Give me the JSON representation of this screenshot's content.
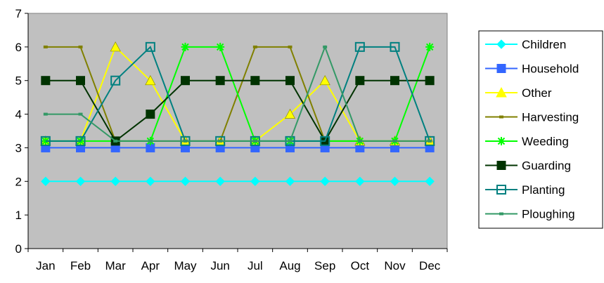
{
  "chart_data": {
    "type": "line",
    "title": "",
    "xlabel": "",
    "ylabel": "",
    "categories": [
      "Jan",
      "Feb",
      "Mar",
      "Apr",
      "May",
      "Jun",
      "Jul",
      "Aug",
      "Sep",
      "Oct",
      "Nov",
      "Dec"
    ],
    "ylim": [
      0,
      7
    ],
    "yticks": [
      0,
      1,
      2,
      3,
      4,
      5,
      6,
      7
    ],
    "grid": false,
    "plot_background": "#c0c0c0",
    "legend_position": "right",
    "series": [
      {
        "name": "Children",
        "color": "#00ffff",
        "marker": "diamond",
        "values": [
          2,
          2,
          2,
          2,
          2,
          2,
          2,
          2,
          2,
          2,
          2,
          2
        ]
      },
      {
        "name": "Household",
        "color": "#3366ff",
        "marker": "square",
        "values": [
          3,
          3,
          3,
          3,
          3,
          3,
          3,
          3,
          3,
          3,
          3,
          3
        ]
      },
      {
        "name": "Other",
        "color": "#ffff00",
        "marker": "triangle",
        "values": [
          3.2,
          3.2,
          6,
          5,
          3.2,
          3.2,
          3.2,
          4,
          5,
          3.2,
          3.2,
          3.2
        ]
      },
      {
        "name": "Harvesting",
        "color": "#808000",
        "marker": "dash",
        "values": [
          6,
          6,
          3.2,
          3.2,
          3.2,
          3.2,
          6,
          6,
          3.2,
          3.2,
          3.2,
          3.2
        ]
      },
      {
        "name": "Weeding",
        "color": "#00ff00",
        "marker": "star",
        "values": [
          3.2,
          3.2,
          3.2,
          3.2,
          6,
          6,
          3.2,
          3.2,
          3.2,
          3.2,
          3.2,
          6
        ]
      },
      {
        "name": "Guarding",
        "color": "#003300",
        "marker": "square",
        "values": [
          5,
          5,
          3.2,
          4,
          5,
          5,
          5,
          5,
          3.2,
          5,
          5,
          5
        ]
      },
      {
        "name": "Planting",
        "color": "#008080",
        "marker": "square-open",
        "values": [
          3.2,
          3.2,
          5,
          6,
          3.2,
          3.2,
          3.2,
          3.2,
          3.2,
          6,
          6,
          3.2
        ]
      },
      {
        "name": "Ploughing",
        "color": "#339966",
        "marker": "dash",
        "values": [
          4,
          4,
          3.2,
          3.2,
          3.2,
          3.2,
          3.2,
          3.2,
          6,
          3.2,
          3.2,
          3.2
        ]
      }
    ]
  }
}
